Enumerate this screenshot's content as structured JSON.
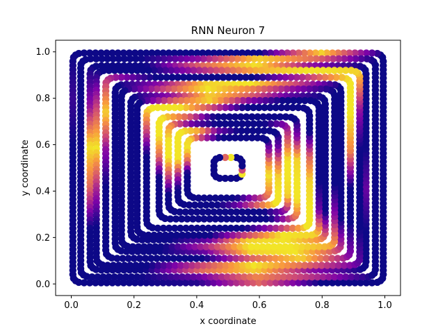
{
  "chart_data": {
    "type": "scatter",
    "title": "RNN Neuron 7",
    "xlabel": "x coordinate",
    "ylabel": "y coordinate",
    "xlim": [
      -0.05,
      1.05
    ],
    "ylim": [
      -0.05,
      1.05
    ],
    "x_ticks": [
      "0.0",
      "0.2",
      "0.4",
      "0.6",
      "0.8",
      "1.0"
    ],
    "y_ticks": [
      "0.0",
      "0.2",
      "0.4",
      "0.6",
      "0.8",
      "1.0"
    ],
    "x_tick_values": [
      0.0,
      0.2,
      0.4,
      0.6,
      0.8,
      1.0
    ],
    "y_tick_values": [
      0.0,
      0.2,
      0.4,
      0.6,
      0.8,
      1.0
    ],
    "colormap": "plasma",
    "colors": {
      "low": "#0d0887",
      "mid": "#9c179e",
      "high": "#f0f921",
      "axes": "#000000",
      "background": "#ffffff"
    },
    "grid": false,
    "legend": "none",
    "rings": [
      {
        "name": "ring-1",
        "half_width": 0.495,
        "half_height": 0.495,
        "activation": [
          0.0,
          0.0,
          0.05,
          0.6,
          0.0,
          0.0,
          0.0,
          0.0,
          0.0,
          0.0,
          0.0,
          0.9,
          0.0,
          0.0,
          0.0,
          0.0,
          0.1,
          0.0,
          0.0,
          0.0
        ]
      },
      {
        "name": "ring-2",
        "half_width": 0.47,
        "half_height": 0.47,
        "activation": [
          0.0,
          0.0,
          0.2,
          0.7,
          0.4,
          0.0,
          0.0,
          0.0,
          0.0,
          0.0,
          0.0,
          0.6,
          0.9,
          0.3,
          0.0,
          0.0,
          0.0,
          0.0,
          0.0,
          0.0
        ]
      },
      {
        "name": "ring-3",
        "half_width": 0.44,
        "half_height": 0.44,
        "activation": [
          0.0,
          0.0,
          0.6,
          0.9,
          0.3,
          0.0,
          0.0,
          0.2,
          0.0,
          0.0,
          0.0,
          0.3,
          0.95,
          0.6,
          0.0,
          0.0,
          0.3,
          0.95,
          0.6,
          0.0
        ]
      },
      {
        "name": "ring-4",
        "half_width": 0.42,
        "half_height": 0.42,
        "activation": [
          0.0,
          0.0,
          0.5,
          0.95,
          0.6,
          0.2,
          0.0,
          0.0,
          0.0,
          0.3,
          0.9,
          0.95,
          0.8,
          0.4,
          0.0,
          0.0,
          0.5,
          0.95,
          0.4,
          0.0
        ]
      },
      {
        "name": "ring-5",
        "half_width": 0.39,
        "half_height": 0.39,
        "activation": [
          0.0,
          0.0,
          0.0,
          0.6,
          0.9,
          0.3,
          0.0,
          0.0,
          0.7,
          0.95,
          0.95,
          0.4,
          0.0,
          0.0,
          0.0,
          0.4,
          0.9,
          0.3,
          0.0,
          0.0
        ]
      },
      {
        "name": "ring-6",
        "half_width": 0.36,
        "half_height": 0.36,
        "activation": [
          0.0,
          0.0,
          0.2,
          0.9,
          0.95,
          0.5,
          0.0,
          0.0,
          0.0,
          0.0,
          0.0,
          0.5,
          0.95,
          0.9,
          0.3,
          0.0,
          0.0,
          0.0,
          0.0,
          0.0
        ]
      },
      {
        "name": "ring-7",
        "half_width": 0.34,
        "half_height": 0.34,
        "activation": [
          0.0,
          0.0,
          0.4,
          0.95,
          0.95,
          0.8,
          0.3,
          0.0,
          0.0,
          0.0,
          0.0,
          0.3,
          0.7,
          0.95,
          0.5,
          0.0,
          0.0,
          0.0,
          0.0,
          0.0
        ]
      },
      {
        "name": "ring-8",
        "half_width": 0.31,
        "half_height": 0.31,
        "activation": [
          0.0,
          0.0,
          0.2,
          0.9,
          0.95,
          0.7,
          0.0,
          0.0,
          0.0,
          0.0,
          0.0,
          0.2,
          0.6,
          0.9,
          0.3,
          0.0,
          0.0,
          0.0,
          0.0,
          0.0
        ]
      },
      {
        "name": "ring-9",
        "half_width": 0.29,
        "half_height": 0.29,
        "activation": [
          0.0,
          0.0,
          0.0,
          0.5,
          0.95,
          0.9,
          0.2,
          0.0,
          0.0,
          0.0,
          0.0,
          0.0,
          0.3,
          0.9,
          0.6,
          0.0,
          0.0,
          0.0,
          0.0,
          0.0
        ]
      },
      {
        "name": "ring-10",
        "half_width": 0.26,
        "half_height": 0.26,
        "activation": [
          0.0,
          0.0,
          0.0,
          0.0,
          0.4,
          0.95,
          0.95,
          0.9,
          0.6,
          0.0,
          0.0,
          0.0,
          0.0,
          0.5,
          0.95,
          0.95,
          0.5,
          0.0,
          0.0,
          0.0
        ]
      },
      {
        "name": "ring-11",
        "half_width": 0.22,
        "half_height": 0.22,
        "activation": [
          0.0,
          0.0,
          0.0,
          0.0,
          0.0,
          0.6,
          0.95,
          0.95,
          0.9,
          0.3,
          0.0,
          0.0,
          0.0,
          0.0,
          0.6,
          0.95,
          0.95,
          0.6,
          0.0,
          0.0
        ]
      },
      {
        "name": "ring-12",
        "half_width": 0.19,
        "half_height": 0.19,
        "activation": [
          0.0,
          0.0,
          0.0,
          0.0,
          0.0,
          0.3,
          0.9,
          0.95,
          0.95,
          0.6,
          0.3,
          0.0,
          0.0,
          0.0,
          0.2,
          0.7,
          0.95,
          0.95,
          0.5,
          0.0
        ]
      },
      {
        "name": "ring-13",
        "half_width": 0.16,
        "half_height": 0.16,
        "activation": [
          0.0,
          0.0,
          0.0,
          0.2,
          0.6,
          0.95,
          0.95,
          0.9,
          0.6,
          0.2,
          0.0,
          0.0,
          0.0,
          0.2,
          0.8,
          0.95,
          0.95,
          0.95,
          0.4,
          0.0
        ]
      },
      {
        "name": "ring-14",
        "half_width": 0.13,
        "half_height": 0.13,
        "activation": [
          0.0,
          0.0,
          0.0,
          0.0,
          0.3,
          0.6,
          0.8,
          0.95,
          0.7,
          0.3,
          0.0,
          0.0,
          0.0,
          0.0,
          0.4,
          0.9,
          0.95,
          0.6,
          0.0,
          0.0
        ]
      },
      {
        "name": "ring-15",
        "half_width": 0.045,
        "half_height": 0.045,
        "activation": [
          0.0,
          0.0,
          0.0,
          0.0,
          0.0,
          0.0,
          0.95,
          0.5,
          0.0,
          0.0,
          0.0,
          0.0,
          0.95,
          0.6,
          0.0,
          0.0,
          0.0,
          0.0,
          0.0,
          0.0
        ]
      }
    ],
    "center": [
      0.5,
      0.5
    ],
    "corner_radius": 0.03
  }
}
